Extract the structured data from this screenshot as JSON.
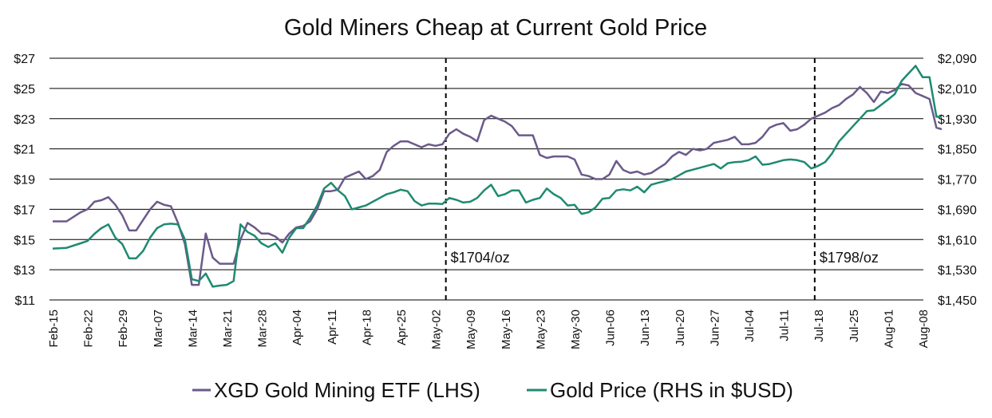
{
  "chart_data": {
    "type": "line",
    "title": "Gold Miners Cheap at Current Gold Price",
    "xlabel": "",
    "ylabel_left": "",
    "ylabel_right": "",
    "x_ticks": [
      "Feb-15",
      "Feb-22",
      "Feb-29",
      "Mar-07",
      "Mar-14",
      "Mar-21",
      "Mar-28",
      "Apr-04",
      "Apr-11",
      "Apr-18",
      "Apr-25",
      "May-02",
      "May-09",
      "May-16",
      "May-23",
      "May-30",
      "Jun-06",
      "Jun-13",
      "Jun-20",
      "Jun-27",
      "Jul-04",
      "Jul-11",
      "Jul-18",
      "Jul-25",
      "Aug-01",
      "Aug-08"
    ],
    "y_left": {
      "min": 11,
      "max": 27,
      "ticks": [
        11,
        13,
        15,
        17,
        19,
        21,
        23,
        25,
        27
      ],
      "tick_labels": [
        "$11",
        "$13",
        "$15",
        "$17",
        "$19",
        "$21",
        "$23",
        "$25",
        "$27"
      ]
    },
    "y_right": {
      "min": 1450,
      "max": 2090,
      "ticks": [
        1450,
        1530,
        1610,
        1690,
        1770,
        1850,
        1930,
        2010,
        2090
      ],
      "tick_labels": [
        "$1,450",
        "$1,530",
        "$1,610",
        "$1,690",
        "$1,770",
        "$1,850",
        "$1,930",
        "$2,010",
        "$2,090"
      ]
    },
    "grid": true,
    "legend_position": "bottom",
    "series": [
      {
        "name": "XGD Gold Mining ETF (LHS)",
        "axis": "left",
        "color": "#6b5a8a",
        "x": [
          0,
          0.4,
          0.8,
          1.0,
          1.2,
          1.4,
          1.6,
          1.8,
          2.0,
          2.2,
          2.4,
          2.6,
          2.8,
          3.0,
          3.2,
          3.4,
          3.6,
          3.8,
          4.0,
          4.2,
          4.4,
          4.6,
          4.8,
          5.0,
          5.2,
          5.4,
          5.6,
          5.8,
          6.0,
          6.2,
          6.4,
          6.6,
          6.8,
          7.0,
          7.2,
          7.4,
          7.6,
          7.8,
          8.0,
          8.2,
          8.4,
          8.6,
          8.8,
          9.0,
          9.2,
          9.4,
          9.6,
          9.8,
          10.0,
          10.2,
          10.4,
          10.6,
          10.8,
          11.0,
          11.2,
          11.4,
          11.6,
          11.8,
          12.0,
          12.2,
          12.4,
          12.6,
          12.8,
          13.0,
          13.2,
          13.4,
          13.6,
          13.8,
          14.0,
          14.2,
          14.4,
          14.6,
          14.8,
          15.0,
          15.2,
          15.4,
          15.6,
          15.8,
          16.0,
          16.2,
          16.4,
          16.6,
          16.8,
          17.0,
          17.2,
          17.4,
          17.6,
          17.8,
          18.0,
          18.2,
          18.4,
          18.6,
          18.8,
          19.0,
          19.2,
          19.4,
          19.6,
          19.8,
          20.0,
          20.2,
          20.4,
          20.6,
          20.8,
          21.0,
          21.2,
          21.4,
          21.6,
          21.8,
          22.0,
          22.2,
          22.4,
          22.6,
          22.8,
          23.0,
          23.2,
          23.4,
          23.6,
          23.8,
          24.0,
          24.2,
          24.4,
          24.6,
          24.8,
          25.0,
          25.2,
          25.4,
          25.55
        ],
        "values": [
          16.2,
          16.2,
          16.8,
          17.0,
          17.5,
          17.6,
          17.8,
          17.3,
          16.6,
          15.6,
          15.6,
          16.3,
          17.0,
          17.5,
          17.3,
          17.2,
          16.1,
          14.7,
          12.0,
          12.0,
          15.4,
          13.8,
          13.4,
          13.4,
          13.4,
          15.0,
          16.1,
          15.8,
          15.4,
          15.4,
          15.2,
          14.8,
          15.4,
          15.8,
          15.9,
          16.2,
          17.0,
          18.2,
          18.2,
          18.3,
          19.1,
          19.3,
          19.5,
          19.0,
          19.2,
          19.6,
          20.8,
          21.2,
          21.5,
          21.5,
          21.3,
          21.1,
          21.3,
          21.2,
          21.3,
          22.0,
          22.3,
          22.0,
          21.8,
          21.5,
          22.9,
          23.2,
          23.0,
          22.8,
          22.5,
          21.9,
          21.9,
          21.9,
          20.6,
          20.4,
          20.5,
          20.5,
          20.5,
          20.3,
          19.3,
          19.2,
          19.0,
          19.0,
          19.3,
          20.2,
          19.6,
          19.4,
          19.5,
          19.3,
          19.4,
          19.7,
          20.0,
          20.5,
          20.8,
          20.6,
          21.0,
          20.9,
          21.0,
          21.4,
          21.5,
          21.6,
          21.8,
          21.3,
          21.3,
          21.4,
          21.8,
          22.4,
          22.6,
          22.7,
          22.2,
          22.3,
          22.6,
          23.0,
          23.2,
          23.4,
          23.7,
          23.9,
          24.3,
          24.6,
          25.1,
          24.7,
          24.1,
          24.8,
          24.7,
          24.9,
          25.3,
          25.2,
          24.7,
          24.5,
          24.3,
          22.4,
          22.3
        ]
      },
      {
        "name": "Gold Price (RHS in $USD)",
        "axis": "right",
        "color": "#1f8a70",
        "x": [
          0,
          0.4,
          0.8,
          1.0,
          1.2,
          1.4,
          1.6,
          1.8,
          2.0,
          2.2,
          2.4,
          2.6,
          2.8,
          3.0,
          3.2,
          3.4,
          3.6,
          3.8,
          4.0,
          4.2,
          4.4,
          4.6,
          4.8,
          5.0,
          5.2,
          5.4,
          5.6,
          5.8,
          6.0,
          6.2,
          6.4,
          6.6,
          6.8,
          7.0,
          7.2,
          7.4,
          7.6,
          7.8,
          8.0,
          8.2,
          8.4,
          8.6,
          8.8,
          9.0,
          9.2,
          9.4,
          9.6,
          9.8,
          10.0,
          10.2,
          10.4,
          10.6,
          10.8,
          11.0,
          11.2,
          11.4,
          11.6,
          11.8,
          12.0,
          12.2,
          12.4,
          12.6,
          12.8,
          13.0,
          13.2,
          13.4,
          13.6,
          13.8,
          14.0,
          14.2,
          14.4,
          14.6,
          14.8,
          15.0,
          15.2,
          15.4,
          15.6,
          15.8,
          16.0,
          16.2,
          16.4,
          16.6,
          16.8,
          17.0,
          17.2,
          17.4,
          17.6,
          17.8,
          18.0,
          18.2,
          18.4,
          18.6,
          18.8,
          19.0,
          19.2,
          19.4,
          19.6,
          19.8,
          20.0,
          20.2,
          20.4,
          20.6,
          20.8,
          21.0,
          21.2,
          21.4,
          21.6,
          21.8,
          22.0,
          22.2,
          22.4,
          22.6,
          22.8,
          23.0,
          23.2,
          23.4,
          23.6,
          23.8,
          24.0,
          24.2,
          24.4,
          24.6,
          24.8,
          25.0,
          25.2,
          25.4,
          25.55
        ],
        "values": [
          1586,
          1588,
          1600,
          1606,
          1625,
          1640,
          1650,
          1615,
          1598,
          1560,
          1560,
          1580,
          1615,
          1640,
          1650,
          1652,
          1650,
          1610,
          1505,
          1500,
          1520,
          1485,
          1488,
          1490,
          1500,
          1650,
          1630,
          1620,
          1600,
          1590,
          1600,
          1575,
          1615,
          1640,
          1640,
          1668,
          1700,
          1745,
          1760,
          1740,
          1725,
          1690,
          1695,
          1700,
          1710,
          1720,
          1730,
          1735,
          1742,
          1738,
          1712,
          1700,
          1705,
          1705,
          1704,
          1720,
          1715,
          1708,
          1710,
          1720,
          1740,
          1755,
          1725,
          1730,
          1740,
          1740,
          1708,
          1715,
          1720,
          1745,
          1730,
          1720,
          1700,
          1702,
          1678,
          1682,
          1695,
          1718,
          1720,
          1740,
          1743,
          1740,
          1750,
          1735,
          1755,
          1760,
          1765,
          1770,
          1780,
          1790,
          1795,
          1800,
          1805,
          1810,
          1798,
          1812,
          1815,
          1816,
          1820,
          1830,
          1808,
          1810,
          1815,
          1820,
          1822,
          1820,
          1815,
          1798,
          1805,
          1815,
          1838,
          1870,
          1890,
          1910,
          1930,
          1950,
          1952,
          1966,
          1980,
          1995,
          2030,
          2050,
          2070,
          2040,
          2040,
          1935,
          1935
        ]
      }
    ],
    "vlines": [
      {
        "x": 11.3,
        "label": "$1704/oz"
      },
      {
        "x": 21.9,
        "label": "$1798/oz"
      }
    ]
  }
}
